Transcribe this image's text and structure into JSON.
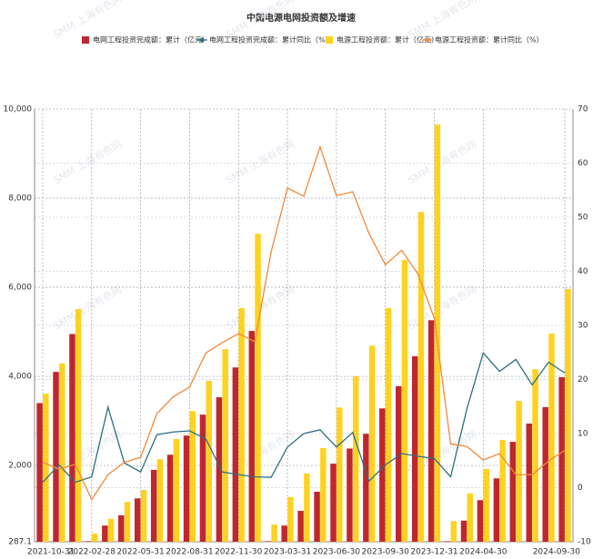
{
  "chart_data": {
    "type": "bar",
    "title": "中国电源电网投资额及增速",
    "watermark": "SMM 上海有色网",
    "categories": [
      "2021-10-31",
      null,
      null,
      "2022-02-28",
      null,
      null,
      "2022-05-31",
      null,
      null,
      "2022-08-31",
      null,
      null,
      "2022-11-30",
      null,
      null,
      "2023-03-31",
      null,
      null,
      "2023-06-30",
      null,
      null,
      "2023-09-30",
      null,
      null,
      "2023-12-31",
      null,
      null,
      "2024-04-30",
      null,
      null,
      null,
      null,
      "2024-09-30"
    ],
    "series": [
      {
        "name": "电网工程投资完成额：累计（亿元）",
        "type": "bar",
        "color": "#c0272d",
        "values": [
          3400,
          4100,
          4950,
          300,
          650,
          880,
          1260,
          1900,
          2240,
          2670,
          3140,
          3530,
          4200,
          5020,
          300,
          650,
          980,
          1410,
          2040,
          2380,
          2710,
          3280,
          3780,
          4450,
          5260,
          300,
          760,
          1220,
          1710,
          2530,
          2940,
          3310,
          3980
        ]
      },
      {
        "name": "电网工程投资完成额：累计同比（%）",
        "type": "line",
        "axis": "y2",
        "color": "#2e6f7e",
        "values": [
          1,
          4.2,
          1,
          2,
          14.9,
          4.6,
          2.9,
          9.8,
          10.3,
          10.5,
          9,
          2.9,
          2.4,
          2,
          1.9,
          7.5,
          10,
          10.7,
          7.5,
          10.2,
          1.2,
          4.2,
          6.3,
          5.8,
          5.4,
          2,
          14.6,
          24.9,
          21.5,
          23.7,
          19,
          23.2,
          21.2
        ]
      },
      {
        "name": "电源工程投资额：累计（亿元）",
        "type": "bar",
        "color": "#ffd21f",
        "values": [
          3610,
          4290,
          5510,
          470,
          800,
          1180,
          1450,
          2140,
          2590,
          3220,
          3900,
          4610,
          5530,
          7200,
          670,
          1290,
          1820,
          2390,
          3300,
          4000,
          4690,
          5530,
          6610,
          7690,
          9650,
          750,
          1370,
          1920,
          2570,
          3450,
          4160,
          4960,
          5960
        ]
      },
      {
        "name": "电源工程投资额：累计同比（%）",
        "type": "line",
        "axis": "y2",
        "color": "#f0893a",
        "values": [
          4.7,
          3.4,
          4.3,
          -2.2,
          2.4,
          4.7,
          5.6,
          13.7,
          16.8,
          18.6,
          24.9,
          26.8,
          28.5,
          27,
          43.6,
          55.4,
          53.9,
          63,
          54,
          54.7,
          47,
          41.2,
          43.9,
          39.5,
          31.3,
          8.1,
          7.6,
          5.1,
          6.3,
          2.4,
          2.4,
          4.9,
          6.9
        ]
      }
    ],
    "ylim": [
      287.1,
      10000
    ],
    "yticks": [
      287.1,
      {
        "value": 2000,
        "label": "2,000"
      },
      {
        "value": 4000,
        "label": "4,000"
      },
      {
        "value": 6000,
        "label": "6,000"
      },
      {
        "value": 8000,
        "label": "8,000"
      },
      {
        "value": 10000,
        "label": "10,000"
      }
    ],
    "y2lim": [
      -10,
      70
    ],
    "y2ticks": [
      -10,
      0,
      10,
      20,
      30,
      40,
      50,
      60,
      70
    ],
    "grid": true,
    "legend": "top"
  }
}
